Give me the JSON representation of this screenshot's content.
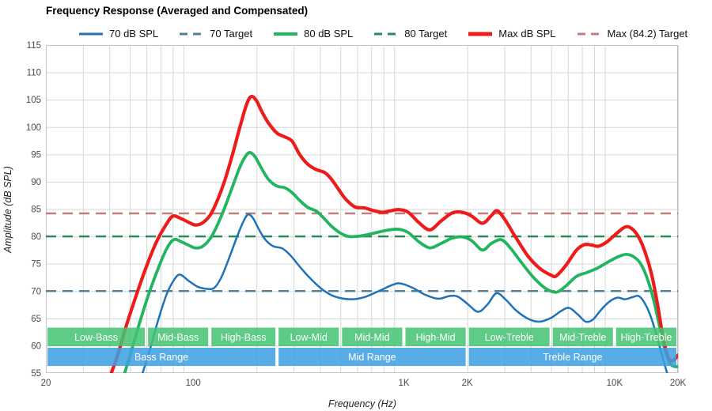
{
  "title": "Frequency Response (Averaged and Compensated)",
  "legend": [
    {
      "label": "70 dB SPL",
      "color": "#1f72b8",
      "style": "solid",
      "width": 3
    },
    {
      "label": "70 Target",
      "color": "#53809d",
      "style": "dashed",
      "width": 3
    },
    {
      "label": "80 dB SPL",
      "color": "#22b55f",
      "style": "solid",
      "width": 4
    },
    {
      "label": "80 Target",
      "color": "#2e8b58",
      "style": "dashed",
      "width": 3
    },
    {
      "label": "Max dB SPL",
      "color": "#ee1b1b",
      "style": "solid",
      "width": 5
    },
    {
      "label": "Max (84.2) Target",
      "color": "#c07f7a",
      "style": "dashed",
      "width": 3
    }
  ],
  "axes": {
    "x": {
      "label": "Frequency (Hz)",
      "scale": "log",
      "min": 20,
      "max": 20000,
      "ticks": [
        {
          "value": 20,
          "label": "20"
        },
        {
          "value": 100,
          "label": "100"
        },
        {
          "value": 1000,
          "label": "1K"
        },
        {
          "value": 2000,
          "label": "2K"
        },
        {
          "value": 10000,
          "label": "10K"
        },
        {
          "value": 20000,
          "label": "20K"
        }
      ]
    },
    "y": {
      "label": "Amplitude (dB SPL)",
      "min": 55,
      "max": 115,
      "tick_step": 5
    }
  },
  "bands": {
    "green_color": "#44c472",
    "blue_color": "#3c9fe2",
    "text_color": "#ffffff",
    "row1": [
      {
        "label": "Low-Bass",
        "from": 20,
        "to": 60
      },
      {
        "label": "Mid-Bass",
        "from": 60,
        "to": 120
      },
      {
        "label": "High-Bass",
        "from": 120,
        "to": 250
      },
      {
        "label": "Low-Mid",
        "from": 250,
        "to": 500
      },
      {
        "label": "Mid-Mid",
        "from": 500,
        "to": 1000
      },
      {
        "label": "High-Mid",
        "from": 1000,
        "to": 2000
      },
      {
        "label": "Low-Treble",
        "from": 2000,
        "to": 5000
      },
      {
        "label": "Mid-Treble",
        "from": 5000,
        "to": 10000
      },
      {
        "label": "High-Treble",
        "from": 10000,
        "to": 20000
      }
    ],
    "row2": [
      {
        "label": "Bass Range",
        "from": 20,
        "to": 250
      },
      {
        "label": "Mid Range",
        "from": 250,
        "to": 2000
      },
      {
        "label": "Treble Range",
        "from": 2000,
        "to": 20000
      }
    ]
  },
  "chart_data": {
    "type": "line",
    "title": "Frequency Response (Averaged and Compensated)",
    "xlabel": "Frequency (Hz)",
    "ylabel": "Amplitude (dB SPL)",
    "x_scale": "log",
    "xlim": [
      20,
      20000
    ],
    "ylim": [
      55,
      115
    ],
    "grid": true,
    "legend_position": "top",
    "targets": [
      {
        "name": "70 Target",
        "value": 70,
        "color": "#53809d"
      },
      {
        "name": "80 Target",
        "value": 80,
        "color": "#2e8b58"
      },
      {
        "name": "Max (84.2) Target",
        "value": 84.2,
        "color": "#c07f7a"
      }
    ],
    "series": [
      {
        "name": "70 dB SPL",
        "color": "#1f72b8",
        "width": 2.5,
        "points": [
          [
            57,
            54.5
          ],
          [
            62,
            59
          ],
          [
            68,
            64.5
          ],
          [
            75,
            69.5
          ],
          [
            82,
            72.3
          ],
          [
            87,
            73
          ],
          [
            95,
            71.9
          ],
          [
            105,
            70.8
          ],
          [
            116,
            70.4
          ],
          [
            126,
            70.6
          ],
          [
            136,
            72.5
          ],
          [
            148,
            76
          ],
          [
            160,
            79.5
          ],
          [
            172,
            82.5
          ],
          [
            182,
            84
          ],
          [
            192,
            83.4
          ],
          [
            205,
            81.3
          ],
          [
            220,
            79.4
          ],
          [
            240,
            78.2
          ],
          [
            265,
            77.8
          ],
          [
            290,
            76.5
          ],
          [
            320,
            74.5
          ],
          [
            360,
            72.3
          ],
          [
            410,
            70.3
          ],
          [
            470,
            69
          ],
          [
            560,
            68.5
          ],
          [
            650,
            68.9
          ],
          [
            760,
            70
          ],
          [
            880,
            71.1
          ],
          [
            960,
            71.4
          ],
          [
            1100,
            70.6
          ],
          [
            1250,
            69.4
          ],
          [
            1450,
            68.6
          ],
          [
            1650,
            69.1
          ],
          [
            1800,
            69
          ],
          [
            2000,
            67.7
          ],
          [
            2250,
            66.2
          ],
          [
            2500,
            67.6
          ],
          [
            2750,
            69.6
          ],
          [
            3050,
            68.4
          ],
          [
            3400,
            66.5
          ],
          [
            3900,
            64.9
          ],
          [
            4400,
            64.4
          ],
          [
            5000,
            65.1
          ],
          [
            5600,
            66.4
          ],
          [
            6100,
            66.9
          ],
          [
            6700,
            65.7
          ],
          [
            7300,
            64.4
          ],
          [
            7900,
            64.8
          ],
          [
            8600,
            66.5
          ],
          [
            9400,
            68
          ],
          [
            10300,
            68.8
          ],
          [
            11200,
            68.5
          ],
          [
            12200,
            68.9
          ],
          [
            13000,
            69.1
          ],
          [
            13800,
            68
          ],
          [
            14800,
            65.5
          ],
          [
            15800,
            62
          ],
          [
            17000,
            57.5
          ],
          [
            18000,
            54.3
          ]
        ]
      },
      {
        "name": "80 dB SPL",
        "color": "#22b55f",
        "width": 3.8,
        "points": [
          [
            46,
            53.5
          ],
          [
            50,
            58
          ],
          [
            55,
            63.5
          ],
          [
            61,
            69
          ],
          [
            68,
            74
          ],
          [
            75,
            77.8
          ],
          [
            81,
            79.4
          ],
          [
            88,
            79
          ],
          [
            95,
            78.4
          ],
          [
            102,
            77.9
          ],
          [
            110,
            78.1
          ],
          [
            120,
            79.5
          ],
          [
            130,
            82
          ],
          [
            142,
            85.5
          ],
          [
            155,
            89.5
          ],
          [
            168,
            93
          ],
          [
            180,
            95
          ],
          [
            188,
            95.3
          ],
          [
            198,
            94.4
          ],
          [
            210,
            92.6
          ],
          [
            228,
            90.4
          ],
          [
            250,
            89.2
          ],
          [
            272,
            88.9
          ],
          [
            295,
            88
          ],
          [
            320,
            86.6
          ],
          [
            350,
            85.3
          ],
          [
            385,
            84.6
          ],
          [
            420,
            83.2
          ],
          [
            455,
            81.8
          ],
          [
            500,
            80.6
          ],
          [
            545,
            80
          ],
          [
            600,
            80
          ],
          [
            670,
            80.3
          ],
          [
            760,
            80.8
          ],
          [
            860,
            81.2
          ],
          [
            950,
            81.3
          ],
          [
            1050,
            80.7
          ],
          [
            1180,
            79
          ],
          [
            1330,
            77.9
          ],
          [
            1500,
            78.7
          ],
          [
            1700,
            79.7
          ],
          [
            1900,
            79.9
          ],
          [
            2100,
            79.2
          ],
          [
            2360,
            77.5
          ],
          [
            2600,
            78.7
          ],
          [
            2900,
            79.4
          ],
          [
            3200,
            77.9
          ],
          [
            3600,
            75.3
          ],
          [
            4100,
            72.6
          ],
          [
            4700,
            70.5
          ],
          [
            5300,
            69.8
          ],
          [
            5900,
            71
          ],
          [
            6600,
            72.7
          ],
          [
            7400,
            73.4
          ],
          [
            8300,
            74.2
          ],
          [
            9300,
            75.3
          ],
          [
            10300,
            76.2
          ],
          [
            11300,
            76.7
          ],
          [
            12300,
            76.3
          ],
          [
            13300,
            75
          ],
          [
            14300,
            72.3
          ],
          [
            15300,
            68.5
          ],
          [
            16300,
            63.8
          ],
          [
            17300,
            59.5
          ],
          [
            18300,
            56.8
          ],
          [
            19300,
            56.2
          ],
          [
            20000,
            56.2
          ]
        ]
      },
      {
        "name": "Max dB SPL",
        "color": "#ee1b1b",
        "width": 4.2,
        "points": [
          [
            40,
            54
          ],
          [
            44,
            58.5
          ],
          [
            48,
            63.5
          ],
          [
            54,
            69.5
          ],
          [
            60,
            74.5
          ],
          [
            67,
            79
          ],
          [
            74,
            82
          ],
          [
            80,
            83.7
          ],
          [
            87,
            83.3
          ],
          [
            95,
            82.6
          ],
          [
            102,
            82.1
          ],
          [
            110,
            82.4
          ],
          [
            120,
            83.8
          ],
          [
            130,
            86.5
          ],
          [
            142,
            90.5
          ],
          [
            155,
            95.5
          ],
          [
            168,
            100.5
          ],
          [
            180,
            104.3
          ],
          [
            189,
            105.6
          ],
          [
            200,
            104.8
          ],
          [
            212,
            102.8
          ],
          [
            228,
            100.7
          ],
          [
            250,
            98.9
          ],
          [
            272,
            98.2
          ],
          [
            295,
            97.4
          ],
          [
            320,
            95
          ],
          [
            350,
            93.2
          ],
          [
            385,
            92.2
          ],
          [
            420,
            91.7
          ],
          [
            450,
            90.6
          ],
          [
            490,
            88.6
          ],
          [
            530,
            86.8
          ],
          [
            585,
            85.4
          ],
          [
            650,
            85.2
          ],
          [
            720,
            84.7
          ],
          [
            790,
            84.4
          ],
          [
            870,
            84.7
          ],
          [
            950,
            84.9
          ],
          [
            1050,
            84.4
          ],
          [
            1180,
            82.5
          ],
          [
            1330,
            81.2
          ],
          [
            1500,
            82.8
          ],
          [
            1700,
            84.3
          ],
          [
            1900,
            84.4
          ],
          [
            2100,
            83.7
          ],
          [
            2360,
            82.4
          ],
          [
            2600,
            83.8
          ],
          [
            2770,
            84.7
          ],
          [
            3000,
            83.2
          ],
          [
            3400,
            79.8
          ],
          [
            3900,
            76.3
          ],
          [
            4400,
            74.2
          ],
          [
            5000,
            72.9
          ],
          [
            5300,
            72.8
          ],
          [
            5900,
            74.8
          ],
          [
            6600,
            77.5
          ],
          [
            7200,
            78.5
          ],
          [
            7800,
            78.4
          ],
          [
            8400,
            78.2
          ],
          [
            9200,
            79
          ],
          [
            10200,
            80.5
          ],
          [
            11200,
            81.7
          ],
          [
            12000,
            81.5
          ],
          [
            13000,
            79.9
          ],
          [
            14000,
            77
          ],
          [
            15000,
            73
          ],
          [
            16000,
            67.5
          ],
          [
            17000,
            61.5
          ],
          [
            18000,
            57.8
          ],
          [
            19000,
            57.3
          ],
          [
            20000,
            58.3
          ]
        ]
      }
    ]
  }
}
